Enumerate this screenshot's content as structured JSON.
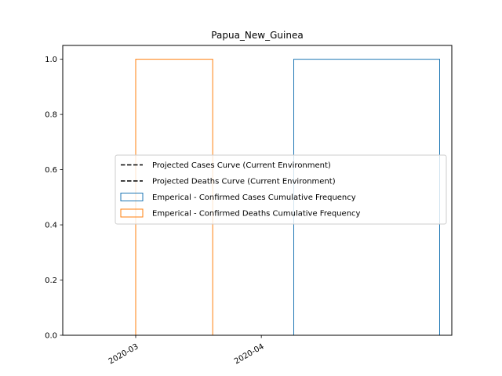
{
  "chart_data": {
    "type": "line",
    "title": "Papua_New_Guinea",
    "xlabel": "",
    "ylabel": "",
    "x_axis": {
      "type": "date",
      "range": [
        "2020-02-12",
        "2020-05-18"
      ],
      "ticks": [
        {
          "value": "2020-03-01",
          "label": "2020-03"
        },
        {
          "value": "2020-04-01",
          "label": "2020-04"
        }
      ]
    },
    "y_axis": {
      "range": [
        0,
        1.05
      ],
      "ticks": [
        {
          "value": 0.0,
          "label": "0.0"
        },
        {
          "value": 0.2,
          "label": "0.2"
        },
        {
          "value": 0.4,
          "label": "0.4"
        },
        {
          "value": 0.6,
          "label": "0.6"
        },
        {
          "value": 0.8,
          "label": "0.8"
        },
        {
          "value": 1.0,
          "label": "1.0"
        }
      ]
    },
    "grid": false,
    "legend_position": "center-right",
    "legend": [
      {
        "label": "Projected Cases Curve (Current Environment)",
        "style": "dashed-line",
        "color": "#000000"
      },
      {
        "label": "Projected Deaths Curve (Current Environment)",
        "style": "dashed-line",
        "color": "#000000"
      },
      {
        "label": "Emperical - Confirmed Cases Cumulative Frequency",
        "style": "step-outline",
        "color": "#1f77b4"
      },
      {
        "label": "Emperical - Confirmed Deaths Cumulative Frequency",
        "style": "step-outline",
        "color": "#ff7f0e"
      }
    ],
    "series": [
      {
        "name": "Emperical - Confirmed Cases Cumulative Frequency",
        "type": "step-histogram",
        "color": "#1f77b4",
        "bins": [
          {
            "start": "2020-03-20",
            "end": "2020-04-09",
            "value": 0
          },
          {
            "start": "2020-04-09",
            "end": "2020-05-15",
            "value": 1
          }
        ]
      },
      {
        "name": "Emperical - Confirmed Deaths Cumulative Frequency",
        "type": "step-histogram",
        "color": "#ff7f0e",
        "bins": [
          {
            "start": "2020-02-15",
            "end": "2020-03-01",
            "value": 0
          },
          {
            "start": "2020-03-01",
            "end": "2020-03-20",
            "value": 1
          },
          {
            "start": "2020-03-20",
            "end": "2020-03-21",
            "value": 0
          }
        ]
      }
    ]
  }
}
